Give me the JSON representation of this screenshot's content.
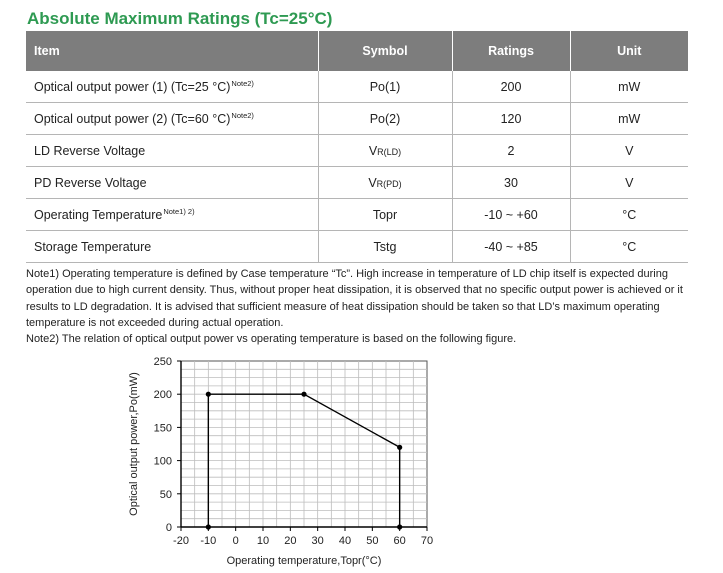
{
  "title": "Absolute Maximum Ratings (Tc=25°C)",
  "table": {
    "headers": [
      "Item",
      "Symbol",
      "Ratings",
      "Unit"
    ],
    "rows": [
      {
        "item": "Optical output power (1) (Tc=25 °C)",
        "note": "Note2)",
        "symbol": "Po(1)",
        "symbol_sub": "",
        "rating": "200",
        "unit": "mW"
      },
      {
        "item": "Optical output power (2) (Tc=60 °C)",
        "note": "Note2)",
        "symbol": "Po(2)",
        "symbol_sub": "",
        "rating": "120",
        "unit": "mW"
      },
      {
        "item": "LD Reverse Voltage",
        "note": "",
        "symbol": "V",
        "symbol_sub": "R(LD)",
        "rating": "2",
        "unit": "V"
      },
      {
        "item": "PD Reverse Voltage",
        "note": "",
        "symbol": "V",
        "symbol_sub": "R(PD)",
        "rating": "30",
        "unit": "V"
      },
      {
        "item": "Operating Temperature",
        "note": "Note1) 2)",
        "symbol": "Topr",
        "symbol_sub": "",
        "rating": "-10 ~ +60",
        "unit": "°C"
      },
      {
        "item": "Storage Temperature",
        "note": "",
        "symbol": "Tstg",
        "symbol_sub": "",
        "rating": "-40 ~ +85",
        "unit": "°C"
      }
    ]
  },
  "notes": {
    "note1": "Note1) Operating temperature is defined by Case temperature “Tc”. High increase in temperature of LD chip itself is expected during operation due to high current density. Thus, without proper heat dissipation, it is observed that no specific output power is achieved or it results to LD degradation. It is advised that sufficient measure of heat dissipation should be taken so that LD’s maximum operating temperature is not exceeded during actual operation.",
    "note2": "Note2) The relation of optical output power vs operating temperature is based on the following figure."
  },
  "chart_data": {
    "type": "line",
    "xlabel": "Operating temperature,Topr(°C)",
    "ylabel": "Optical output power,Po(mW)",
    "xlim": [
      -20,
      70
    ],
    "ylim": [
      0,
      250
    ],
    "xticks": [
      "-20",
      "-10",
      "0",
      "10",
      "20",
      "30",
      "40",
      "50",
      "60",
      "70"
    ],
    "yticks": [
      "0",
      "50",
      "100",
      "150",
      "200",
      "250"
    ],
    "grid": true,
    "series": [
      {
        "x": [
          -10,
          -10,
          25,
          60,
          60
        ],
        "y": [
          0,
          200,
          200,
          120,
          0
        ]
      }
    ],
    "colors": {
      "line": "#000000",
      "grid": "#bdbdbd"
    }
  }
}
